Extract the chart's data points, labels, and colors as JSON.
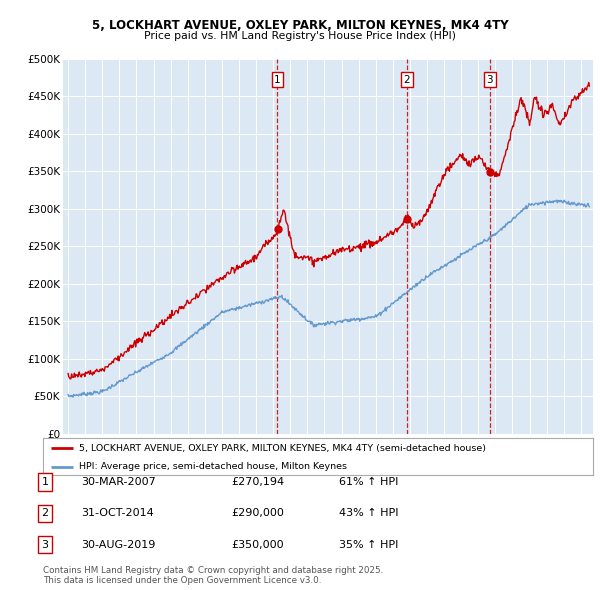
{
  "title_line1": "5, LOCKHART AVENUE, OXLEY PARK, MILTON KEYNES, MK4 4TY",
  "title_line2": "Price paid vs. HM Land Registry's House Price Index (HPI)",
  "bg_color": "#dce9f5",
  "red_color": "#cc0000",
  "blue_color": "#6699cc",
  "vline_color": "#cc0000",
  "grid_color": "#ffffff",
  "ylim": [
    0,
    500000
  ],
  "yticks": [
    0,
    50000,
    100000,
    150000,
    200000,
    250000,
    300000,
    350000,
    400000,
    450000,
    500000
  ],
  "ytick_labels": [
    "£0",
    "£50K",
    "£100K",
    "£150K",
    "£200K",
    "£250K",
    "£300K",
    "£350K",
    "£400K",
    "£450K",
    "£500K"
  ],
  "sale_dates": [
    2007.25,
    2014.83,
    2019.67
  ],
  "sale_labels": [
    "1",
    "2",
    "3"
  ],
  "sale_prices": [
    270194,
    290000,
    350000
  ],
  "sale_date_strs": [
    "30-MAR-2007",
    "31-OCT-2014",
    "30-AUG-2019"
  ],
  "sale_pct": [
    "61%",
    "43%",
    "35%"
  ],
  "legend_line1": "5, LOCKHART AVENUE, OXLEY PARK, MILTON KEYNES, MK4 4TY (semi-detached house)",
  "legend_line2": "HPI: Average price, semi-detached house, Milton Keynes",
  "footer": "Contains HM Land Registry data © Crown copyright and database right 2025.\nThis data is licensed under the Open Government Licence v3.0."
}
